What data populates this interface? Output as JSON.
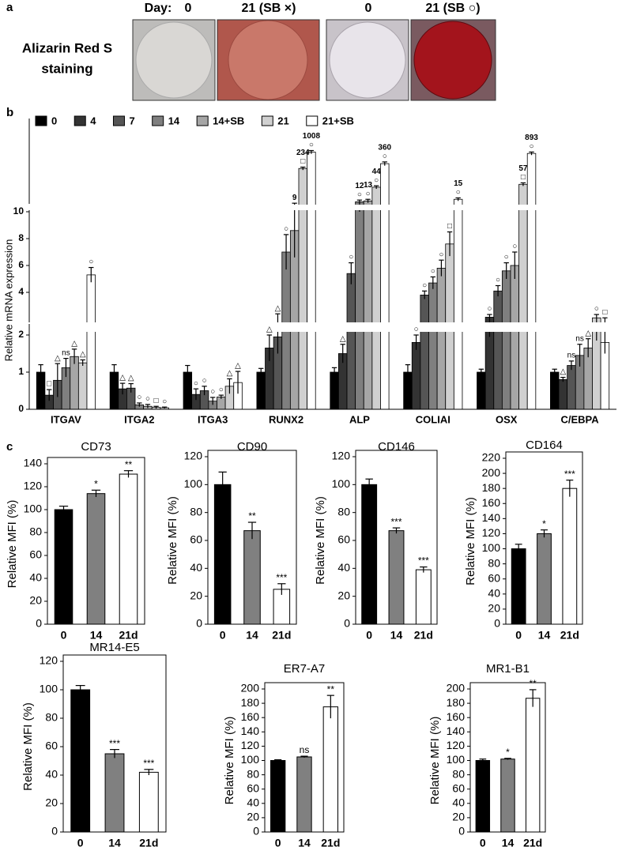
{
  "panel_a": {
    "label": "a",
    "day_label": "Day:",
    "columns": [
      "0",
      "21 (SB ×)",
      "0",
      "21 (SB ○)"
    ],
    "row_label": [
      "Alizarin Red S",
      "staining"
    ]
  },
  "chart_data": [
    {
      "type": "bar",
      "panel_label": "b",
      "y_label": "Relative mRNA expression",
      "categories": [
        "ITGAV",
        "ITGA2",
        "ITGA3",
        "RUNX2",
        "ALP",
        "COLIAI",
        "OSX",
        "C/EBPA"
      ],
      "ylim": [
        0,
        1200
      ],
      "y_breaks": [
        2,
        10
      ],
      "yticks": [
        0,
        1,
        2,
        4,
        6,
        8,
        10
      ],
      "series": [
        {
          "name": "0",
          "color": "#000000",
          "values": [
            1,
            1,
            1,
            1,
            1,
            1,
            1,
            1
          ],
          "errors": [
            0.2,
            0.2,
            0.18,
            0.1,
            0.12,
            0.2,
            0.08,
            0.08
          ],
          "markers": [
            null,
            null,
            null,
            null,
            null,
            null,
            null,
            null
          ]
        },
        {
          "name": "4",
          "color": "#333333",
          "values": [
            0.38,
            0.55,
            0.4,
            1.65,
            1.5,
            1.8,
            2.15,
            0.8
          ],
          "errors": [
            0.15,
            0.15,
            0.15,
            0.35,
            0.25,
            0.2,
            0.2,
            0.06
          ],
          "markers": [
            "□",
            "△",
            "○",
            "△",
            "△",
            "○",
            "○",
            "△"
          ]
        },
        {
          "name": "7",
          "color": "#555555",
          "values": [
            0.78,
            0.57,
            0.5,
            1.95,
            5.4,
            3.8,
            4.1,
            1.18
          ],
          "errors": [
            0.45,
            0.12,
            0.12,
            0.45,
            0.8,
            0.3,
            0.4,
            0.12
          ],
          "markers": [
            "△",
            "△",
            "○",
            "△",
            "○",
            "○",
            "○",
            "ns"
          ]
        },
        {
          "name": "14",
          "color": "#7f7f7f",
          "values": [
            1.12,
            0.12,
            0.22,
            7.0,
            12,
            4.7,
            5.6,
            1.45
          ],
          "errors": [
            0.25,
            0.05,
            0.1,
            1.3,
            2,
            0.45,
            0.6,
            0.3
          ],
          "markers": [
            "ns",
            "○",
            "○",
            "○",
            "○",
            "○",
            "○",
            "ns"
          ],
          "value_labels": [
            null,
            null,
            null,
            null,
            "12",
            null,
            null,
            null
          ]
        },
        {
          "name": "14+SB",
          "color": "#a6a6a6",
          "values": [
            1.42,
            0.08,
            0.33,
            8.6,
            13,
            5.8,
            6.0,
            1.65
          ],
          "errors": [
            0.2,
            0.05,
            0.05,
            2.0,
            2,
            0.6,
            1.0,
            0.25
          ],
          "markers": [
            "△",
            "○",
            "○",
            null,
            "○",
            "○",
            "○",
            "△"
          ],
          "value_labels": [
            null,
            null,
            null,
            "9",
            "13",
            null,
            null,
            null
          ]
        },
        {
          "name": "21",
          "color": "#d0d0d0",
          "values": [
            1.25,
            0.05,
            0.62,
            234,
            44,
            7.6,
            57,
            2.1
          ],
          "errors": [
            0.08,
            0.03,
            0.2,
            30,
            6,
            0.9,
            8,
            0.25
          ],
          "markers": [
            "△",
            "□",
            "△",
            "□",
            "○",
            "□",
            "□",
            "○"
          ],
          "value_labels": [
            null,
            null,
            null,
            "234",
            "44",
            null,
            "57",
            null
          ]
        },
        {
          "name": "21+SB",
          "color": "#ffffff",
          "values": [
            5.3,
            0.04,
            0.72,
            1008,
            360,
            15,
            893,
            1.8
          ],
          "errors": [
            0.55,
            0.02,
            0.3,
            150,
            60,
            2,
            120,
            0.3
          ],
          "markers": [
            "○",
            "○",
            "△",
            "○",
            "○",
            "○",
            "○",
            "□"
          ],
          "value_labels": [
            null,
            null,
            null,
            "1008",
            "360",
            "15",
            "893",
            null
          ]
        }
      ]
    },
    {
      "type": "bar",
      "panel_label": "c",
      "title": "CD73",
      "y_label": "Relative MFI (%)",
      "categories": [
        "0",
        "14",
        "21d"
      ],
      "colors": [
        "#000000",
        "#808080",
        "#ffffff"
      ],
      "values": [
        100,
        114,
        131
      ],
      "errors": [
        3,
        3,
        3
      ],
      "significance": [
        null,
        "*",
        "**"
      ],
      "ylim": [
        0,
        140
      ],
      "yticks": [
        0,
        20,
        40,
        60,
        80,
        100,
        120,
        140
      ]
    },
    {
      "type": "bar",
      "title": "CD90",
      "y_label": "Relative MFI (%)",
      "categories": [
        "0",
        "14",
        "21d"
      ],
      "colors": [
        "#000000",
        "#808080",
        "#ffffff"
      ],
      "values": [
        100,
        67,
        25
      ],
      "errors": [
        9,
        6,
        4
      ],
      "significance": [
        null,
        "**",
        "***"
      ],
      "ylim": [
        0,
        120
      ],
      "yticks": [
        0,
        20,
        40,
        60,
        80,
        100,
        120
      ]
    },
    {
      "type": "bar",
      "title": "CD146",
      "y_label": "Relative MFI (%)",
      "categories": [
        "0",
        "14",
        "21d"
      ],
      "colors": [
        "#000000",
        "#808080",
        "#ffffff"
      ],
      "values": [
        100,
        67,
        39
      ],
      "errors": [
        4,
        2,
        2
      ],
      "significance": [
        null,
        "***",
        "***"
      ],
      "ylim": [
        0,
        120
      ],
      "yticks": [
        0,
        20,
        40,
        60,
        80,
        100,
        120
      ]
    },
    {
      "type": "bar",
      "title": "CD164",
      "y_label": "Relative MFI (%)",
      "categories": [
        "0",
        "14",
        "21d"
      ],
      "colors": [
        "#000000",
        "#808080",
        "#ffffff"
      ],
      "values": [
        100,
        120,
        180
      ],
      "errors": [
        6,
        5,
        11
      ],
      "significance": [
        null,
        "*",
        "***"
      ],
      "ylim": [
        0,
        220
      ],
      "yticks": [
        0,
        20,
        40,
        60,
        80,
        100,
        120,
        140,
        160,
        180,
        200,
        220
      ]
    },
    {
      "type": "bar",
      "title": "MR14-E5",
      "y_label": "Relative MFI (%)",
      "categories": [
        "0",
        "14",
        "21d"
      ],
      "colors": [
        "#000000",
        "#808080",
        "#ffffff"
      ],
      "values": [
        100,
        55,
        42
      ],
      "errors": [
        3,
        3,
        2
      ],
      "significance": [
        null,
        "***",
        "***"
      ],
      "ylim": [
        0,
        120
      ],
      "yticks": [
        0,
        20,
        40,
        60,
        80,
        100,
        120
      ]
    },
    {
      "type": "bar",
      "title": "ER7-A7",
      "y_label": "Relative MFI (%)",
      "categories": [
        "0",
        "14",
        "21d"
      ],
      "colors": [
        "#000000",
        "#808080",
        "#ffffff"
      ],
      "values": [
        100,
        105,
        175
      ],
      "errors": [
        1,
        1,
        16
      ],
      "significance": [
        null,
        "ns",
        "**"
      ],
      "ylim": [
        0,
        200
      ],
      "yticks": [
        0,
        20,
        40,
        60,
        80,
        100,
        120,
        140,
        160,
        180,
        200
      ]
    },
    {
      "type": "bar",
      "title": "MR1-B1",
      "y_label": "Relative MFI (%)",
      "categories": [
        "0",
        "14",
        "21d"
      ],
      "colors": [
        "#000000",
        "#808080",
        "#ffffff"
      ],
      "values": [
        100,
        102,
        187
      ],
      "errors": [
        2,
        1,
        12
      ],
      "significance": [
        null,
        "*",
        "**"
      ],
      "ylim": [
        0,
        200
      ],
      "yticks": [
        0,
        20,
        40,
        60,
        80,
        100,
        120,
        140,
        160,
        180,
        200
      ]
    }
  ]
}
